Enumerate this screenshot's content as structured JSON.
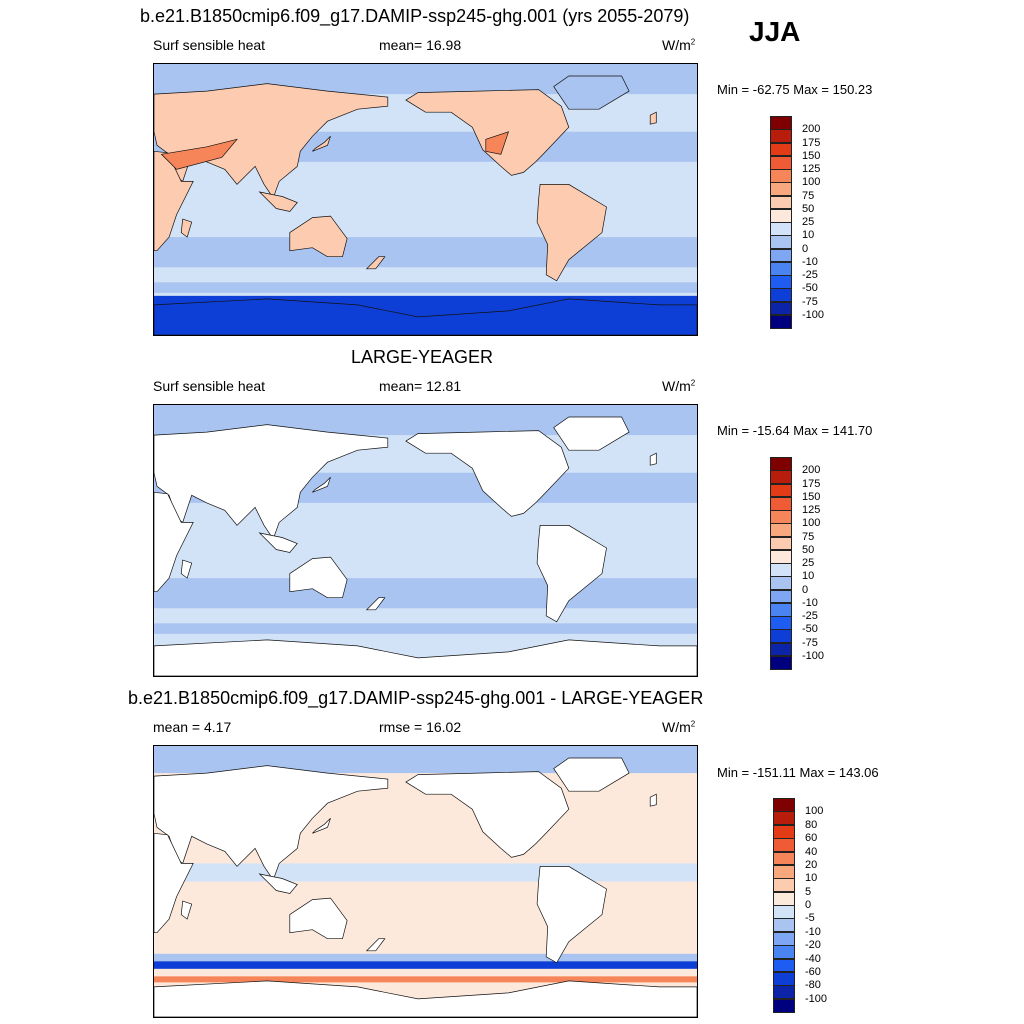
{
  "season": "JJA",
  "colors": {
    "levels_heat": [
      "#00007f",
      "#0b24a8",
      "#0d3fd6",
      "#1f5df2",
      "#4a84f2",
      "#7fa6f2",
      "#a9c4f0",
      "#d2e3f7",
      "#fde9dc",
      "#fdcbb0",
      "#f9a87d",
      "#f6855a",
      "#ee5b35",
      "#e23b16",
      "#b81c0a",
      "#7f0000"
    ],
    "ocean_light": "#d2e3f7",
    "ocean_mid": "#a9c4f0",
    "ocean_dark": "#0d3fd6",
    "land_warm": "#fdcbb0",
    "land_hot": "#f6855a",
    "diff_pos": "#fde9dc",
    "diff_neg": "#d2e3f7"
  },
  "panels": [
    {
      "title": "b.e21.B1850cmip6.f09_g17.DAMIP-ssp245-ghg.001 (yrs 2055-2079)",
      "left_label": "Surf sensible heat",
      "center_label": "mean=  16.98",
      "units": "W/m",
      "units_sup": "2",
      "minmax": "Min = -62.75 Max = 150.23",
      "colorbar_labels": [
        "200",
        "175",
        "150",
        "125",
        "100",
        "75",
        "50",
        "25",
        "10",
        "0",
        "-10",
        "-25",
        "-50",
        "-75",
        "-100"
      ]
    },
    {
      "title": "LARGE-YEAGER",
      "left_label": "Surf sensible heat",
      "center_label": "mean=  12.81",
      "units": "W/m",
      "units_sup": "2",
      "minmax": "Min = -15.64 Max = 141.70",
      "colorbar_labels": [
        "200",
        "175",
        "150",
        "125",
        "100",
        "75",
        "50",
        "25",
        "10",
        "0",
        "-10",
        "-25",
        "-50",
        "-75",
        "-100"
      ]
    },
    {
      "title": "b.e21.B1850cmip6.f09_g17.DAMIP-ssp245-ghg.001 - LARGE-YEAGER",
      "left_label": "mean =   4.17",
      "center_label": "rmse =  16.02",
      "units": "W/m",
      "units_sup": "2",
      "minmax": "Min = -151.11 Max = 143.06",
      "colorbar_labels": [
        "100",
        "80",
        "60",
        "40",
        "20",
        "10",
        "5",
        "0",
        "-5",
        "-10",
        "-20",
        "-40",
        "-60",
        "-80",
        "-100"
      ]
    }
  ]
}
